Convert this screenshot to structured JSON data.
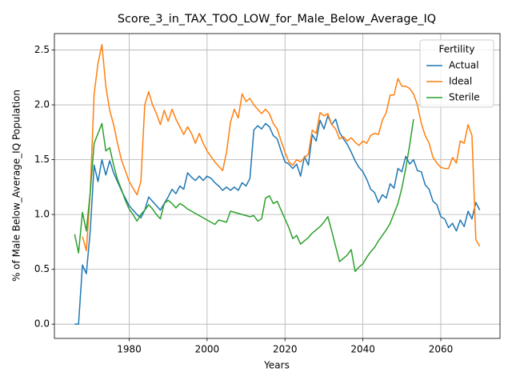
{
  "chart_data": {
    "type": "line",
    "title": "Score_3_in_TAX_TOO_LOW_for_Male_Below_Average_IQ",
    "xlabel": "Years",
    "ylabel": "% of Male Below_Average_IQ Population",
    "legend_title": "Fertility",
    "legend": "upper right",
    "grid": true,
    "x": [
      1966,
      1967,
      1968,
      1969,
      1970,
      1971,
      1972,
      1973,
      1974,
      1975,
      1976,
      1977,
      1978,
      1979,
      1980,
      1981,
      1982,
      1983,
      1984,
      1985,
      1986,
      1987,
      1988,
      1989,
      1990,
      1991,
      1992,
      1993,
      1994,
      1995,
      1996,
      1997,
      1998,
      1999,
      2000,
      2001,
      2002,
      2003,
      2004,
      2005,
      2006,
      2007,
      2008,
      2009,
      2010,
      2011,
      2012,
      2013,
      2014,
      2015,
      2016,
      2017,
      2018,
      2019,
      2020,
      2021,
      2022,
      2023,
      2024,
      2025,
      2026,
      2027,
      2028,
      2029,
      2030,
      2031,
      2032,
      2033,
      2034,
      2035,
      2036,
      2037,
      2038,
      2039,
      2040,
      2041,
      2042,
      2043,
      2044,
      2045,
      2046,
      2047,
      2048,
      2049,
      2050,
      2051,
      2052,
      2053,
      2054,
      2055,
      2056,
      2057,
      2058,
      2059,
      2060,
      2061,
      2062,
      2063,
      2064,
      2065,
      2066,
      2067,
      2068,
      2069,
      2070
    ],
    "series": [
      {
        "name": "Actual",
        "color": "#1f77b4",
        "values": [
          0,
          0,
          0.54,
          0.46,
          0.85,
          1.45,
          1.3,
          1.5,
          1.36,
          1.49,
          1.38,
          1.3,
          1.22,
          1.15,
          1.08,
          1.04,
          1.0,
          0.97,
          1.04,
          1.16,
          1.12,
          1.08,
          1.04,
          1.1,
          1.16,
          1.23,
          1.19,
          1.26,
          1.23,
          1.38,
          1.34,
          1.31,
          1.35,
          1.31,
          1.35,
          1.33,
          1.29,
          1.26,
          1.22,
          1.25,
          1.22,
          1.25,
          1.22,
          1.29,
          1.26,
          1.33,
          1.77,
          1.81,
          1.78,
          1.83,
          1.8,
          1.72,
          1.69,
          1.58,
          1.48,
          1.46,
          1.42,
          1.46,
          1.35,
          1.53,
          1.45,
          1.73,
          1.67,
          1.86,
          1.78,
          1.9,
          1.82,
          1.87,
          1.75,
          1.69,
          1.64,
          1.57,
          1.49,
          1.43,
          1.39,
          1.32,
          1.23,
          1.2,
          1.11,
          1.18,
          1.15,
          1.28,
          1.24,
          1.42,
          1.39,
          1.53,
          1.46,
          1.5,
          1.4,
          1.39,
          1.27,
          1.23,
          1.12,
          1.09,
          0.98,
          0.96,
          0.88,
          0.92,
          0.85,
          0.95,
          0.89,
          1.03,
          0.96,
          1.11,
          1.04
        ]
      },
      {
        "name": "Ideal",
        "color": "#ff7f0e",
        "values": [
          null,
          null,
          0.8,
          0.67,
          1.2,
          2.1,
          2.38,
          2.55,
          2.17,
          1.95,
          1.82,
          1.65,
          1.5,
          1.4,
          1.3,
          1.24,
          1.18,
          1.3,
          2.0,
          2.12,
          2.0,
          1.92,
          1.82,
          1.95,
          1.85,
          1.96,
          1.87,
          1.8,
          1.73,
          1.8,
          1.74,
          1.65,
          1.74,
          1.65,
          1.58,
          1.53,
          1.48,
          1.44,
          1.4,
          1.57,
          1.84,
          1.96,
          1.88,
          2.1,
          2.03,
          2.06,
          2.0,
          1.96,
          1.92,
          1.96,
          1.92,
          1.83,
          1.78,
          1.67,
          1.57,
          1.48,
          1.45,
          1.5,
          1.48,
          1.52,
          1.55,
          1.77,
          1.74,
          1.93,
          1.9,
          1.92,
          1.82,
          1.78,
          1.69,
          1.71,
          1.67,
          1.7,
          1.66,
          1.63,
          1.67,
          1.65,
          1.72,
          1.74,
          1.73,
          1.86,
          1.93,
          2.09,
          2.09,
          2.24,
          2.17,
          2.17,
          2.15,
          2.1,
          2.0,
          1.83,
          1.72,
          1.65,
          1.52,
          1.47,
          1.43,
          1.42,
          1.42,
          1.52,
          1.47,
          1.67,
          1.65,
          1.82,
          1.72,
          0.77,
          0.71
        ]
      },
      {
        "name": "Sterile",
        "color": "#2ca02c",
        "values": [
          0.82,
          0.65,
          1.02,
          0.85,
          1.2,
          1.65,
          1.74,
          1.83,
          1.58,
          1.61,
          1.45,
          1.32,
          1.23,
          1.13,
          1.05,
          1.0,
          0.94,
          1.0,
          1.04,
          1.09,
          1.05,
          1.0,
          0.96,
          1.1,
          1.13,
          1.1,
          1.06,
          1.1,
          1.08,
          1.05,
          1.03,
          1.01,
          0.99,
          0.97,
          0.95,
          0.93,
          0.91,
          0.95,
          0.94,
          0.93,
          1.03,
          1.02,
          1.01,
          1.0,
          0.99,
          0.98,
          0.99,
          0.94,
          0.96,
          1.15,
          1.17,
          1.1,
          1.12,
          1.04,
          0.96,
          0.88,
          0.78,
          0.81,
          0.73,
          0.76,
          0.79,
          0.83,
          0.86,
          0.89,
          0.93,
          0.98,
          0.85,
          0.71,
          0.57,
          0.6,
          0.63,
          0.68,
          0.48,
          0.52,
          0.55,
          0.61,
          0.66,
          0.7,
          0.76,
          0.81,
          0.86,
          0.92,
          1.01,
          1.1,
          1.24,
          1.42,
          1.63,
          1.87,
          null,
          null,
          null,
          null,
          null,
          null,
          null,
          null,
          null,
          null,
          null,
          null,
          null,
          null,
          null,
          null,
          null
        ]
      }
    ],
    "xlim": [
      1960.8,
      2075.2
    ],
    "xticks": [
      1980,
      2000,
      2020,
      2040,
      2060
    ],
    "ylim": [
      -0.13,
      2.65
    ],
    "yticks": [
      {
        "value": 0,
        "label": "0.0"
      },
      0.5,
      {
        "value": 1,
        "label": "1.0"
      },
      1.5,
      {
        "value": 2,
        "label": "2.0"
      },
      2.5
    ]
  }
}
